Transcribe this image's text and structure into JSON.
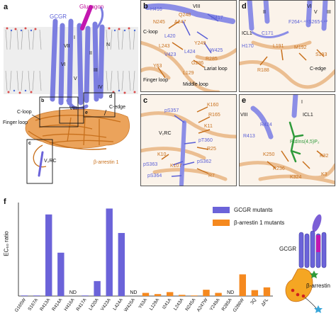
{
  "panel_labels": {
    "a": "a",
    "b": "b",
    "c": "c",
    "d": "d",
    "e": "e",
    "f": "f"
  },
  "panel_a": {
    "glucagon": "Glucagon",
    "gcgr": "GCGR",
    "helix_i": "I",
    "helix_ii": "II",
    "helix_iii": "III",
    "helix_iv": "IV",
    "helix_v": "V",
    "helix_vi": "VI",
    "helix_vii": "VII",
    "helix_viii": "VIII",
    "n_term": "N",
    "box_b": "b",
    "box_c": "c",
    "box_d": "d",
    "box_e": "e",
    "c_loop": "C-loop",
    "c_edge": "C-edge",
    "finger_loop": "Finger loop",
    "barrestin": "β-arrestin 1",
    "vrc": "V₂RC"
  },
  "panel_b": {
    "helix_viii": "VIII",
    "h416": "H416",
    "q248": "Q248",
    "r417": "R417",
    "n245": "N245",
    "a247": "A247",
    "c_loop": "C-loop",
    "l420": "L420",
    "l243": "L243",
    "y249": "Y249",
    "v423": "V423",
    "l424": "L424",
    "w425": "W425",
    "r285": "R285",
    "g286": "G286",
    "lariat_loop": "Lariat loop",
    "y63": "Y63",
    "l129": "L129",
    "finger_loop": "Finger loop",
    "middle_loop": "Middle loop"
  },
  "panel_c": {
    "k160": "K160",
    "ps357": "pS357",
    "r165": "R165",
    "k11": "K11",
    "vrc": "V₂RC",
    "pt360": "pT360",
    "r25": "R25",
    "k10": "K10",
    "ps363": "pS363",
    "k107": "K107",
    "ps362": "pS362",
    "ps364": "pS364",
    "r7": "R7"
  },
  "panel_d": {
    "vi": "VI",
    "ii": "II",
    "v": "V",
    "iii": "III",
    "f26448": "F264⁴·⁴⁸",
    "s26542": "S265⁴·⁴²",
    "icl1": "ICL1",
    "c171": "C171",
    "h170": "H170",
    "l191": "L191",
    "m192": "M192",
    "s193": "S193",
    "r188": "R188",
    "c_edge": "C-edge"
  },
  "panel_e": {
    "viii": "VIII",
    "i": "I",
    "icl1": "ICL1",
    "r424": "R424",
    "r413": "R413",
    "ptdins": "PtdIns(4,5)P₂",
    "k250": "K250",
    "r236": "R236",
    "k324": "K324",
    "k32": "K32",
    "k3": "K3"
  },
  "panel_f": {
    "ylabel": "EC₅₀ ratio",
    "nd": "ND",
    "legend_gcgr": "GCGR mutants",
    "legend_arrestin": "β-arrestin 1 mutants",
    "schematic_gcgr": "GCGR",
    "schematic_arrestin": "β-arrestin"
  },
  "chart_data": {
    "type": "bar",
    "title": "",
    "xlabel": "",
    "ylabel": "EC₅₀ ratio",
    "ylim": [
      0,
      230
    ],
    "ymax_break": true,
    "categories": [
      "G165W",
      "S167A",
      "R413A",
      "R414A",
      "H416A",
      "R417A",
      "L420A",
      "V423A",
      "L424A",
      "W425A",
      "Y63A",
      "L129A",
      "I241A",
      "L243A",
      "N245A",
      "A247W",
      "Y249A",
      "R285A",
      "G286W",
      "3Q",
      "ΔFL"
    ],
    "series": [
      {
        "name": "GCGR mutants",
        "color": "#6b63d9",
        "values": [
          0.5,
          1,
          207,
          110,
          null,
          1,
          38,
          222,
          160,
          null,
          null,
          null,
          null,
          null,
          null,
          null,
          null,
          null,
          null,
          null,
          null
        ]
      },
      {
        "name": "β-arrestin 1 mutants",
        "color": "#f5891f",
        "values": [
          null,
          null,
          null,
          null,
          null,
          null,
          null,
          null,
          null,
          null,
          8,
          5,
          10,
          3,
          0.5,
          16,
          8,
          null,
          55,
          15,
          22
        ]
      }
    ],
    "nd_categories": [
      "H416A",
      "W425A",
      "R285A"
    ]
  }
}
